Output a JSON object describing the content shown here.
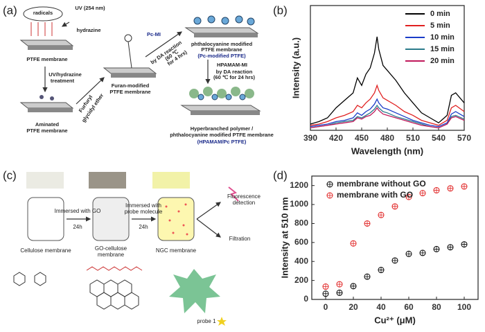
{
  "panel_labels": [
    "(a)",
    "(b)",
    "(c)",
    "(d)"
  ],
  "panel_a": {
    "radicals": "radicals",
    "uv": "UV (254 nm)",
    "hydrazine": "hydrazine",
    "ptfe": "PTFE membrane",
    "treatment": [
      "UV/hydrazine",
      "treatment"
    ],
    "aminated": [
      "Aminated",
      "PTFE membrane"
    ],
    "furfuryl": [
      "Furfuryl",
      "glycidyl ether"
    ],
    "furan": [
      "Furan-modified",
      "PTFE membrane"
    ],
    "pc_mi": "Pc-MI",
    "da1": [
      "by DA reaction",
      "(60 ℃",
      "for 4 hrs)"
    ],
    "pc_modified": [
      "phthalocyanine modified",
      "PTFE membrane",
      "(Pc-modified PTFE)"
    ],
    "hpamam_mi": "HPAMAM-MI",
    "da2": [
      "by DA reaction",
      "(60 ℃ for 24 hrs)"
    ],
    "hyper": [
      "Hyperbranched polymer /",
      "phthalocyanine modified PTFE membrane",
      "(HPAMAM/Pc PTFE)"
    ]
  },
  "panel_c": {
    "step1": [
      "Immersed with GO",
      "24h"
    ],
    "step2": [
      "Immersed with",
      "probe molecule",
      "24h"
    ],
    "fluorescence": [
      "Fluorescence",
      "detection"
    ],
    "filtration": "Filtration",
    "cellulose": "Cellulose membrane",
    "go_cellulose": [
      "GO-cellulose",
      "membrane"
    ],
    "ngc": "NGC membrane",
    "probe": "probe 1"
  },
  "chart_data": [
    {
      "type": "line",
      "x_label": "Wavelength (nm)",
      "y_label": "Intensity (a.u.)",
      "x": [
        390,
        400,
        410,
        420,
        430,
        440,
        445,
        450,
        455,
        460,
        465,
        468,
        470,
        475,
        480,
        490,
        500,
        510,
        520,
        530,
        540,
        550,
        555,
        560,
        570
      ],
      "series": [
        {
          "name": "0 min",
          "color": "#000000",
          "values": [
            5,
            7,
            10,
            18,
            24,
            30,
            42,
            36,
            45,
            50,
            62,
            75,
            65,
            52,
            48,
            40,
            30,
            22,
            14,
            10,
            6,
            12,
            28,
            30,
            22
          ]
        },
        {
          "name": "5 min",
          "color": "#e02020",
          "values": [
            4,
            5,
            7,
            10,
            12,
            15,
            20,
            18,
            22,
            25,
            30,
            36,
            32,
            26,
            24,
            20,
            15,
            12,
            8,
            6,
            4,
            8,
            18,
            20,
            15
          ]
        },
        {
          "name": "10 min",
          "color": "#1a3cc8",
          "values": [
            3,
            4,
            5,
            7,
            8,
            10,
            14,
            12,
            15,
            17,
            21,
            25,
            22,
            18,
            17,
            14,
            11,
            8,
            6,
            4,
            3,
            6,
            13,
            15,
            11
          ]
        },
        {
          "name": "15 min",
          "color": "#2a7a8a",
          "values": [
            2,
            3,
            4,
            6,
            7,
            8,
            11,
            10,
            12,
            14,
            17,
            20,
            18,
            15,
            14,
            11,
            9,
            7,
            5,
            3,
            2,
            5,
            11,
            12,
            9
          ]
        },
        {
          "name": "20 min",
          "color": "#c0185a",
          "values": [
            2,
            3,
            4,
            5,
            6,
            7,
            10,
            9,
            11,
            12,
            15,
            18,
            16,
            13,
            12,
            10,
            8,
            6,
            4,
            3,
            2,
            5,
            10,
            11,
            8
          ]
        }
      ],
      "xlim": [
        390,
        570
      ],
      "xticks": [
        390,
        420,
        450,
        480,
        510,
        540,
        570
      ],
      "ylim": [
        0,
        100
      ],
      "legend": "upper right"
    },
    {
      "type": "scatter",
      "x_label": "Cu²⁺ (μM)",
      "y_label": "Intensity at 510 nm",
      "x": [
        0,
        10,
        20,
        30,
        40,
        50,
        60,
        70,
        80,
        90,
        100
      ],
      "series": [
        {
          "name": "membrane without GO",
          "color": "#000000",
          "values": [
            60,
            70,
            140,
            240,
            310,
            410,
            480,
            490,
            530,
            550,
            580
          ]
        },
        {
          "name": "membrane with GO",
          "color": "#e02020",
          "values": [
            135,
            160,
            590,
            800,
            890,
            980,
            1080,
            1120,
            1150,
            1170,
            1190
          ]
        }
      ],
      "xlim": [
        -10,
        110
      ],
      "xticks": [
        0,
        20,
        40,
        60,
        80,
        100
      ],
      "ylim": [
        0,
        1300
      ],
      "yticks": [
        0,
        200,
        400,
        600,
        800,
        1000,
        1200
      ],
      "legend": "upper left"
    }
  ]
}
